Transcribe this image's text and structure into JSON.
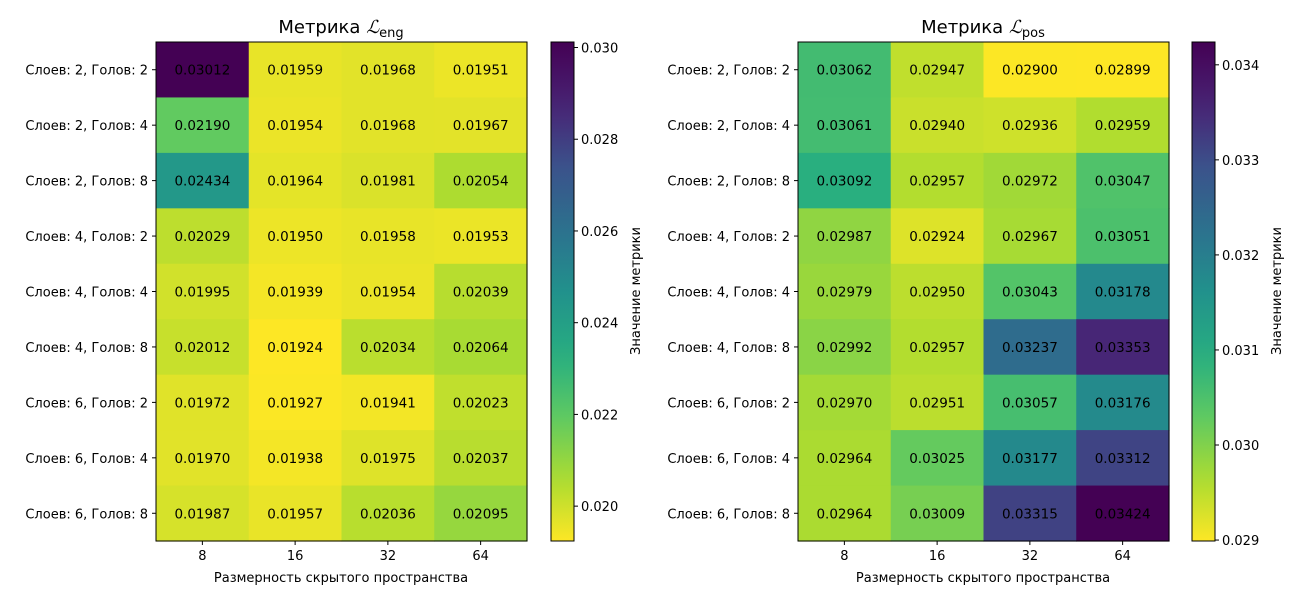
{
  "chart_data": [
    {
      "type": "heatmap",
      "title_main": "Метрика ",
      "title_symbol": "ℒ",
      "title_sub": "eng",
      "xlabel": "Размерность скрытого пространства",
      "x": [
        "8",
        "16",
        "32",
        "64"
      ],
      "y": [
        "Слоев: 2, Голов: 2",
        "Слоев: 2, Голов: 4",
        "Слоев: 2, Голов: 8",
        "Слоев: 4, Голов: 2",
        "Слоев: 4, Голов: 4",
        "Слоев: 4, Голов: 8",
        "Слоев: 6, Голов: 2",
        "Слоев: 6, Голов: 4",
        "Слоев: 6, Голов: 8"
      ],
      "values": [
        [
          0.03012,
          0.01959,
          0.01968,
          0.01951
        ],
        [
          0.0219,
          0.01954,
          0.01968,
          0.01967
        ],
        [
          0.02434,
          0.01964,
          0.01981,
          0.02054
        ],
        [
          0.02029,
          0.0195,
          0.01958,
          0.01953
        ],
        [
          0.01995,
          0.01939,
          0.01954,
          0.02039
        ],
        [
          0.02012,
          0.01924,
          0.02034,
          0.02064
        ],
        [
          0.01972,
          0.01927,
          0.01941,
          0.02023
        ],
        [
          0.0197,
          0.01938,
          0.01975,
          0.02037
        ],
        [
          0.01987,
          0.01957,
          0.02036,
          0.02095
        ]
      ],
      "labels": [
        [
          "0.03012",
          "0.01959",
          "0.01968",
          "0.01951"
        ],
        [
          "0.02190",
          "0.01954",
          "0.01968",
          "0.01967"
        ],
        [
          "0.02434",
          "0.01964",
          "0.01981",
          "0.02054"
        ],
        [
          "0.02029",
          "0.01950",
          "0.01958",
          "0.01953"
        ],
        [
          "0.01995",
          "0.01939",
          "0.01954",
          "0.02039"
        ],
        [
          "0.02012",
          "0.01924",
          "0.02034",
          "0.02064"
        ],
        [
          "0.01972",
          "0.01927",
          "0.01941",
          "0.02023"
        ],
        [
          "0.01970",
          "0.01938",
          "0.01975",
          "0.02037"
        ],
        [
          "0.01987",
          "0.01957",
          "0.02036",
          "0.02095"
        ]
      ],
      "colorbar": {
        "label": "Значение метрики",
        "range": [
          0.01924,
          0.03012
        ],
        "ticks": [
          0.02,
          0.022,
          0.024,
          0.026,
          0.028,
          0.03
        ],
        "tick_labels": [
          "0.020",
          "0.022",
          "0.024",
          "0.026",
          "0.028",
          "0.030"
        ]
      },
      "colormap": "viridis_r"
    },
    {
      "type": "heatmap",
      "title_main": "Метрика ",
      "title_symbol": "ℒ",
      "title_sub": "pos",
      "xlabel": "Размерность скрытого пространства",
      "x": [
        "8",
        "16",
        "32",
        "64"
      ],
      "y": [
        "Слоев: 2, Голов: 2",
        "Слоев: 2, Голов: 4",
        "Слоев: 2, Голов: 8",
        "Слоев: 4, Голов: 2",
        "Слоев: 4, Голов: 4",
        "Слоев: 4, Голов: 8",
        "Слоев: 6, Голов: 2",
        "Слоев: 6, Голов: 4",
        "Слоев: 6, Голов: 8"
      ],
      "values": [
        [
          0.03062,
          0.02947,
          0.029,
          0.02899
        ],
        [
          0.03061,
          0.0294,
          0.02936,
          0.02959
        ],
        [
          0.03092,
          0.02957,
          0.02972,
          0.03047
        ],
        [
          0.02987,
          0.02924,
          0.02967,
          0.03051
        ],
        [
          0.02979,
          0.0295,
          0.03043,
          0.03178
        ],
        [
          0.02992,
          0.02957,
          0.03237,
          0.03353
        ],
        [
          0.0297,
          0.02951,
          0.03057,
          0.03176
        ],
        [
          0.02964,
          0.03025,
          0.03177,
          0.03312
        ],
        [
          0.02964,
          0.03009,
          0.03315,
          0.03424
        ]
      ],
      "labels": [
        [
          "0.03062",
          "0.02947",
          "0.02900",
          "0.02899"
        ],
        [
          "0.03061",
          "0.02940",
          "0.02936",
          "0.02959"
        ],
        [
          "0.03092",
          "0.02957",
          "0.02972",
          "0.03047"
        ],
        [
          "0.02987",
          "0.02924",
          "0.02967",
          "0.03051"
        ],
        [
          "0.02979",
          "0.02950",
          "0.03043",
          "0.03178"
        ],
        [
          "0.02992",
          "0.02957",
          "0.03237",
          "0.03353"
        ],
        [
          "0.02970",
          "0.02951",
          "0.03057",
          "0.03176"
        ],
        [
          "0.02964",
          "0.03025",
          "0.03177",
          "0.03312"
        ],
        [
          "0.02964",
          "0.03009",
          "0.03315",
          "0.03424"
        ]
      ],
      "colorbar": {
        "label": "Значение метрики",
        "range": [
          0.02899,
          0.03424
        ],
        "ticks": [
          0.029,
          0.03,
          0.031,
          0.032,
          0.033,
          0.034
        ],
        "tick_labels": [
          "0.029",
          "0.030",
          "0.031",
          "0.032",
          "0.033",
          "0.034"
        ]
      },
      "colormap": "viridis_r"
    }
  ]
}
